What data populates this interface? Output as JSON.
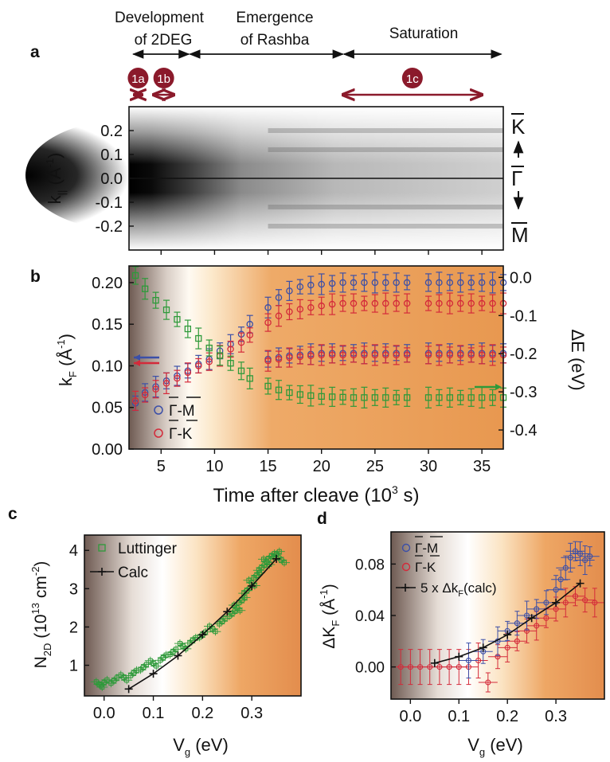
{
  "colors": {
    "blue": "#3b4fa8",
    "red": "#d42a3a",
    "green": "#2e9a3a",
    "phase": "#8b1a2b",
    "brown": "#6e5a52",
    "orange": "#e8934a",
    "black": "#111111"
  },
  "header": {
    "phases": [
      "Development",
      "of 2DEG",
      "Emergence",
      "of Rashba",
      "Saturation"
    ],
    "markers": [
      "1a",
      "1b",
      "1c"
    ],
    "marker_time_ranges": [
      [
        2.5,
        3.2
      ],
      [
        4.3,
        6.2
      ],
      [
        22,
        35
      ]
    ]
  },
  "chart_data": [
    {
      "panel": "a",
      "type": "heatmap",
      "ylabel": "k",
      "ylabel_sub": "||",
      "yunit": "(Å",
      "yunit_sup": "-1",
      "yunit_end": ")",
      "ylim": [
        -0.3,
        0.3
      ],
      "yticks": [
        "0.2",
        "0.1",
        "0.0",
        "-0.1",
        "-0.2"
      ],
      "ytick_values": [
        0.2,
        0.1,
        0.0,
        -0.1,
        -0.2
      ],
      "right_labels": [
        "K",
        "Γ",
        "M"
      ],
      "xlim": [
        2,
        37
      ]
    },
    {
      "panel": "b",
      "type": "scatter",
      "xlabel": "Time after cleave (10",
      "xlabel_sup": "3",
      "xlabel_end": " s)",
      "ylabel": "k",
      "ylabel_sub": "F",
      "yunit": " (Å",
      "yunit_sup": "-1",
      "yunit_end": ")",
      "y2label": "ΔE (eV)",
      "xlim": [
        2,
        37
      ],
      "ylim": [
        0,
        0.22
      ],
      "y2lim": [
        -0.45,
        0.03
      ],
      "xticks": [
        "5",
        "10",
        "15",
        "20",
        "25",
        "30",
        "35"
      ],
      "xtick_values": [
        5,
        10,
        15,
        20,
        25,
        30,
        35
      ],
      "yticks": [
        "0.00",
        "0.05",
        "0.10",
        "0.15",
        "0.20"
      ],
      "ytick_values": [
        0,
        0.05,
        0.1,
        0.15,
        0.2
      ],
      "y2ticks": [
        "0.0",
        "-0.1",
        "-0.2",
        "-0.3",
        "-0.4"
      ],
      "y2tick_values": [
        0,
        -0.1,
        -0.2,
        -0.3,
        -0.4
      ],
      "legend": [
        "Γ-M",
        "Γ-K"
      ],
      "series": [
        {
          "name": "Γ-M outer",
          "axis": "left",
          "x": [
            2.6,
            3.5,
            4.5,
            5.5,
            6.5,
            7.5,
            8.5,
            9.5,
            10.5,
            11.5,
            12.5,
            13.3,
            15,
            16,
            17,
            18,
            19,
            20,
            21,
            22,
            23,
            24,
            25,
            26,
            27,
            28,
            30,
            31,
            32,
            33,
            34,
            35,
            36,
            37
          ],
          "values": [
            0.055,
            0.068,
            0.075,
            0.082,
            0.088,
            0.094,
            0.102,
            0.108,
            0.118,
            0.126,
            0.138,
            0.15,
            0.17,
            0.182,
            0.19,
            0.195,
            0.197,
            0.198,
            0.199,
            0.2,
            0.2,
            0.2,
            0.2,
            0.2,
            0.2,
            0.2,
            0.2,
            0.2,
            0.2,
            0.2,
            0.2,
            0.2,
            0.2,
            0.2
          ]
        },
        {
          "name": "Γ-K outer",
          "axis": "left",
          "x": [
            2.6,
            3.5,
            4.5,
            5.5,
            6.5,
            7.5,
            8.5,
            9.5,
            10.5,
            11.5,
            12.5,
            13.3,
            15,
            16,
            17,
            18,
            19,
            20,
            21,
            22,
            23,
            24,
            25,
            26,
            27,
            28,
            30,
            31,
            32,
            33,
            34,
            35,
            36,
            37
          ],
          "values": [
            0.058,
            0.065,
            0.072,
            0.079,
            0.085,
            0.092,
            0.1,
            0.105,
            0.112,
            0.12,
            0.128,
            0.137,
            0.152,
            0.16,
            0.165,
            0.168,
            0.17,
            0.172,
            0.174,
            0.175,
            0.175,
            0.175,
            0.175,
            0.175,
            0.175,
            0.175,
            0.175,
            0.175,
            0.175,
            0.175,
            0.175,
            0.175,
            0.175,
            0.175
          ]
        },
        {
          "name": "Γ-M inner",
          "axis": "left",
          "x": [
            15,
            16,
            17,
            18,
            19,
            20,
            21,
            22,
            23,
            24,
            25,
            26,
            27,
            28,
            30,
            31,
            32,
            33,
            34,
            35,
            36,
            37
          ],
          "values": [
            0.108,
            0.11,
            0.112,
            0.113,
            0.114,
            0.115,
            0.115,
            0.115,
            0.115,
            0.115,
            0.115,
            0.115,
            0.115,
            0.115,
            0.115,
            0.115,
            0.115,
            0.115,
            0.115,
            0.115,
            0.115,
            0.115
          ]
        },
        {
          "name": "Γ-K inner",
          "axis": "left",
          "x": [
            15,
            16,
            17,
            18,
            19,
            20,
            21,
            22,
            23,
            24,
            25,
            26,
            27,
            28,
            30,
            31,
            32,
            33,
            34,
            35,
            36,
            37
          ],
          "values": [
            0.106,
            0.108,
            0.11,
            0.111,
            0.112,
            0.113,
            0.113,
            0.113,
            0.113,
            0.113,
            0.113,
            0.113,
            0.113,
            0.113,
            0.113,
            0.113,
            0.113,
            0.113,
            0.113,
            0.113,
            0.113,
            0.113
          ]
        },
        {
          "name": "ΔE",
          "axis": "right",
          "x": [
            2.6,
            3.5,
            4.5,
            5.5,
            6.5,
            7.5,
            8.5,
            9.5,
            10.5,
            11.5,
            12.5,
            13.3,
            15,
            16,
            17,
            18,
            19,
            20,
            21,
            22,
            23,
            24,
            25,
            26,
            27,
            28,
            30,
            31,
            32,
            33,
            34,
            35,
            36,
            37
          ],
          "values": [
            0.005,
            -0.03,
            -0.06,
            -0.085,
            -0.11,
            -0.135,
            -0.16,
            -0.185,
            -0.205,
            -0.225,
            -0.245,
            -0.265,
            -0.285,
            -0.295,
            -0.302,
            -0.307,
            -0.31,
            -0.312,
            -0.313,
            -0.314,
            -0.315,
            -0.315,
            -0.315,
            -0.315,
            -0.315,
            -0.315,
            -0.315,
            -0.315,
            -0.315,
            -0.315,
            -0.315,
            -0.315,
            -0.315,
            -0.315
          ]
        }
      ]
    },
    {
      "panel": "c",
      "type": "scatter",
      "xlabel": "V",
      "xlabel_sub": "g",
      "xlabel_end": " (eV)",
      "ylabel": "N",
      "ylabel_sub": "2D",
      "yunit": " (10",
      "yunit_sup1": "13",
      "yunit_mid": " cm",
      "yunit_sup2": "-2",
      "yunit_end": ")",
      "xlim": [
        -0.04,
        0.4
      ],
      "ylim": [
        0.2,
        4.4
      ],
      "xticks": [
        "0.0",
        "0.1",
        "0.2",
        "0.3"
      ],
      "xtick_values": [
        0,
        0.1,
        0.2,
        0.3
      ],
      "yticks": [
        "1",
        "2",
        "3",
        "4"
      ],
      "ytick_values": [
        1,
        2,
        3,
        4
      ],
      "legend": [
        "Luttinger",
        "Calc"
      ],
      "series": [
        {
          "name": "Luttinger",
          "x": [
            -0.01,
            0.0,
            0.02,
            0.04,
            0.06,
            0.08,
            0.1,
            0.12,
            0.14,
            0.16,
            0.18,
            0.2,
            0.22,
            0.24,
            0.26,
            0.27,
            0.28,
            0.29,
            0.3,
            0.31,
            0.32,
            0.33,
            0.34,
            0.35,
            0.36
          ],
          "values": [
            0.5,
            0.55,
            0.6,
            0.68,
            0.8,
            0.95,
            1.05,
            1.2,
            1.35,
            1.5,
            1.65,
            1.8,
            1.95,
            2.15,
            2.35,
            2.5,
            2.7,
            2.95,
            3.15,
            3.35,
            3.55,
            3.7,
            3.85,
            3.9,
            3.75
          ]
        },
        {
          "name": "Calc",
          "x": [
            0.05,
            0.1,
            0.15,
            0.2,
            0.25,
            0.3,
            0.35
          ],
          "values": [
            0.38,
            0.78,
            1.25,
            1.8,
            2.4,
            3.07,
            3.78
          ]
        }
      ]
    },
    {
      "panel": "d",
      "type": "scatter",
      "xlabel": "V",
      "xlabel_sub": "g",
      "xlabel_end": " (eV)",
      "ylabel": "ΔK",
      "ylabel_sub": "F",
      "yunit": " (Å",
      "yunit_sup": "-1",
      "yunit_end": ")",
      "xlim": [
        -0.04,
        0.4
      ],
      "ylim": [
        -0.025,
        0.105
      ],
      "xticks": [
        "0.0",
        "0.1",
        "0.2",
        "0.3"
      ],
      "xtick_values": [
        0,
        0.1,
        0.2,
        0.3
      ],
      "yticks": [
        "0.00",
        "0.04",
        "0.08"
      ],
      "ytick_values": [
        0,
        0.04,
        0.08
      ],
      "legend": [
        "Γ-M",
        "Γ-K",
        "5 x Δk",
        "F",
        "(calc)"
      ],
      "series": [
        {
          "name": "Γ-M",
          "x": [
            0.12,
            0.15,
            0.18,
            0.2,
            0.22,
            0.24,
            0.26,
            0.28,
            0.3,
            0.31,
            0.32,
            0.33,
            0.34,
            0.35,
            0.36,
            0.37
          ],
          "values": [
            0.005,
            0.012,
            0.02,
            0.028,
            0.034,
            0.04,
            0.045,
            0.05,
            0.06,
            0.068,
            0.077,
            0.085,
            0.09,
            0.088,
            0.083,
            0.086
          ]
        },
        {
          "name": "Γ-K",
          "x": [
            -0.02,
            0.0,
            0.02,
            0.04,
            0.06,
            0.08,
            0.1,
            0.12,
            0.14,
            0.16,
            0.18,
            0.2,
            0.22,
            0.24,
            0.26,
            0.28,
            0.3,
            0.32,
            0.34,
            0.36,
            0.38
          ],
          "values": [
            0.0,
            0.0,
            0.0,
            0.0,
            0.0,
            0.0,
            0.0,
            0.0,
            0.005,
            -0.012,
            0.008,
            0.015,
            0.02,
            0.028,
            0.032,
            0.038,
            0.045,
            0.05,
            0.055,
            0.052,
            0.05
          ]
        },
        {
          "name": "5 x Δk_F(calc)",
          "x": [
            0.05,
            0.1,
            0.15,
            0.2,
            0.25,
            0.3,
            0.35
          ],
          "values": [
            0.003,
            0.008,
            0.015,
            0.025,
            0.038,
            0.05,
            0.065
          ]
        }
      ]
    }
  ]
}
